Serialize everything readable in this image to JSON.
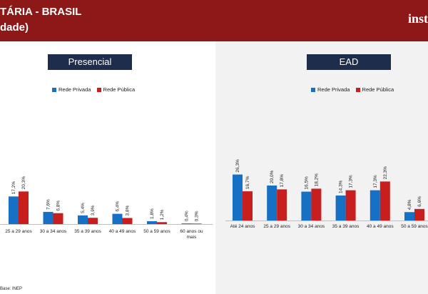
{
  "header": {
    "title_line1": "TÁRIA - BRASIL",
    "title_line2": "dade)",
    "brand": "inst"
  },
  "colors": {
    "privada": "#1670c4",
    "publica": "#c81e1e",
    "header_bg": "#8c1818",
    "title_bg": "#1f2d4d"
  },
  "footnote": "Base: INEP",
  "chart_data": [
    {
      "type": "bar",
      "title": "Presencial",
      "legend": [
        "Rede Privada",
        "Rede Pública"
      ],
      "categories": [
        "25 a 29 anos",
        "30 a 34 anos",
        "35 a 39 anos",
        "40 a 49 anos",
        "50 a 59 anos",
        "60 anos ou mais"
      ],
      "series": [
        {
          "name": "Rede Privada",
          "values": [
            17.2,
            7.6,
            5.4,
            6.4,
            1.8,
            0.4
          ],
          "labels": [
            "17,2%",
            "7,6%",
            "5,4%",
            "6,4%",
            "1,8%",
            "0,4%"
          ]
        },
        {
          "name": "Rede Pública",
          "values": [
            20.3,
            6.8,
            3.9,
            3.8,
            1.2,
            0.3
          ],
          "labels": [
            "20,3%",
            "6,8%",
            "3,9%",
            "3,8%",
            "1,2%",
            "0,3%"
          ]
        }
      ]
    },
    {
      "type": "bar",
      "title": "EAD",
      "legend": [
        "Rede Privada",
        "Rede Pública"
      ],
      "categories": [
        "Até 24 anos",
        "25 a 29 anos",
        "30 a 34 anos",
        "35 a 39 anos",
        "40 a 49 anos",
        "50 a 59 anos"
      ],
      "series": [
        {
          "name": "Rede Privada",
          "values": [
            26.3,
            20.0,
            16.5,
            14.3,
            17.3,
            4.8
          ],
          "labels": [
            "26,3%",
            "20,0%",
            "16,5%",
            "14,3%",
            "17,3%",
            "4,8%"
          ]
        },
        {
          "name": "Rede Pública",
          "values": [
            16.7,
            17.8,
            18.2,
            17.3,
            22.3,
            6.6
          ],
          "labels": [
            "16,7%",
            "17,8%",
            "18,2%",
            "17,3%",
            "22,3%",
            "6,6%"
          ]
        }
      ]
    }
  ]
}
